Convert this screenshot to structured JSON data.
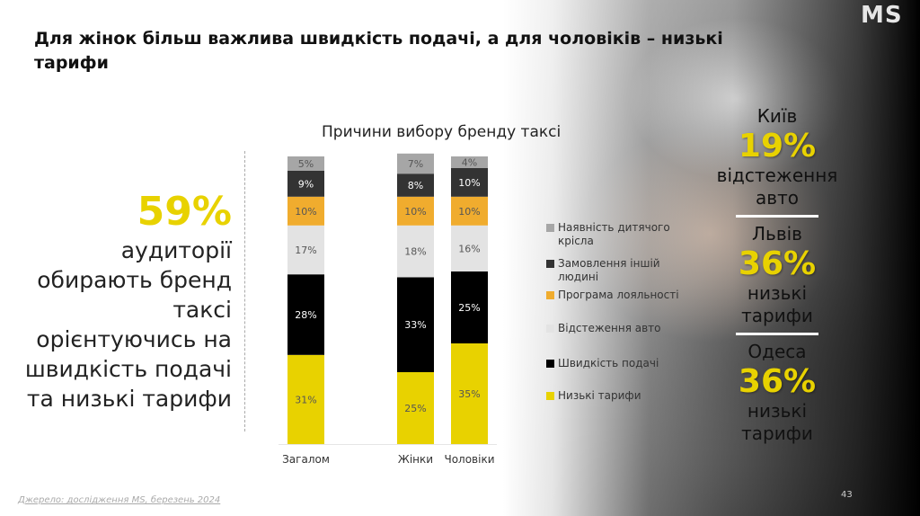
{
  "title": "Для жінок більш важлива швидкість подачі, а для чоловіків – низькі тарифи",
  "logo": "MS",
  "highlight": {
    "value": "59%",
    "text": "аудиторії обирають бренд таксі орієнтуючись на швидкість подачі та низькі тарифи"
  },
  "chart_data": {
    "type": "bar",
    "stacked": true,
    "title": "Причини вибору бренду таксі",
    "categories": [
      "Загалом",
      "Жінки",
      "Чоловіки"
    ],
    "series": [
      {
        "name": "Низькі тарифи",
        "color": "#e8d200",
        "values": [
          31,
          25,
          35
        ]
      },
      {
        "name": "Швидкість подачі",
        "color": "#000000",
        "values": [
          28,
          33,
          25
        ]
      },
      {
        "name": "Відстеження авто",
        "color": "#e3e3e3",
        "values": [
          17,
          18,
          16
        ]
      },
      {
        "name": "Програма лояльності",
        "color": "#f0ac2e",
        "values": [
          10,
          10,
          10
        ]
      },
      {
        "name": "Замовлення іншій людині",
        "color": "#333333",
        "values": [
          9,
          8,
          10
        ]
      },
      {
        "name": "Наявність дитячого крісла",
        "color": "#a6a6a6",
        "values": [
          5,
          7,
          4
        ]
      }
    ],
    "value_suffix": "%",
    "ylim": [
      0,
      100
    ],
    "legend": "right"
  },
  "cities": [
    {
      "city": "Київ",
      "value": "19%",
      "desc": "відстеження авто"
    },
    {
      "city": "Львів",
      "value": "36%",
      "desc": "низькі тарифи"
    },
    {
      "city": "Одеса",
      "value": "36%",
      "desc": "низькі тарифи"
    }
  ],
  "source": "Джерело: дослідження MS, березень 2024",
  "page_number": "43"
}
